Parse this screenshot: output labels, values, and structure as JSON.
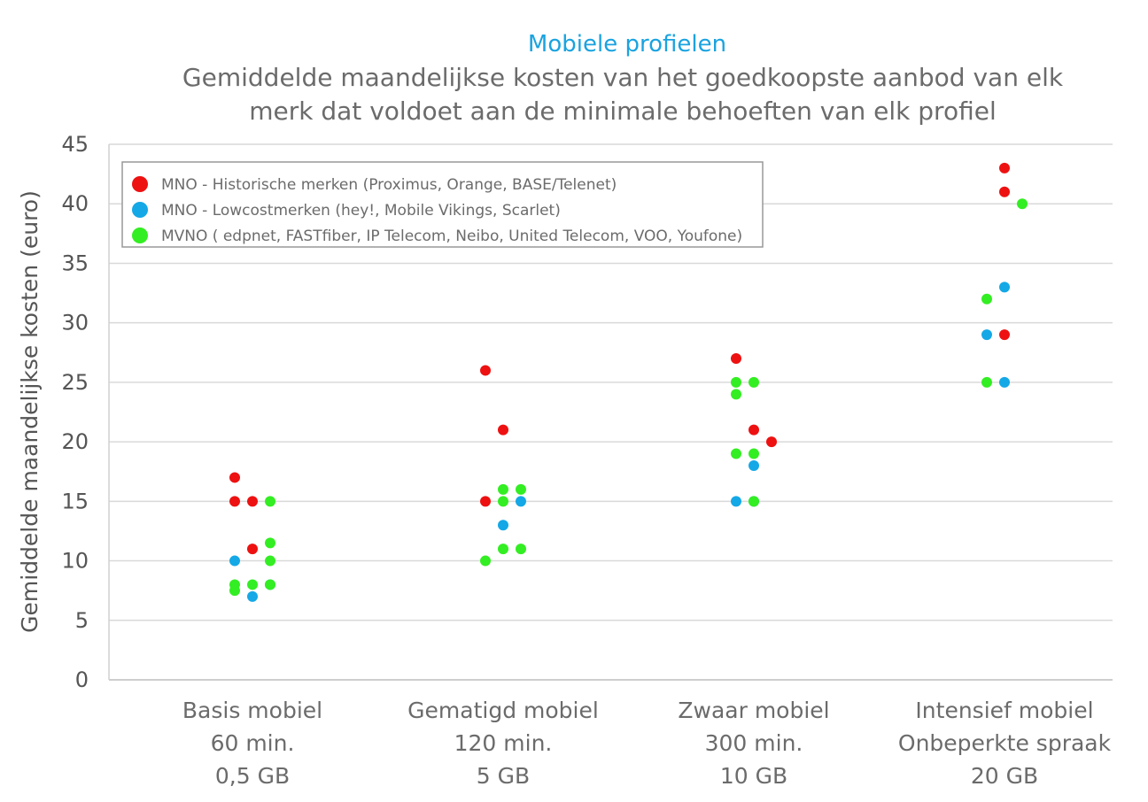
{
  "chart_data": {
    "type": "scatter",
    "title": "Mobiele profielen",
    "subtitle_lines": [
      "Gemiddelde maandelijkse kosten van het goedkoopste aanbod van elk",
      "merk dat voldoet aan de minimale behoeften van elk profiel"
    ],
    "ylabel": "Gemiddelde maandelijkse kosten (euro)",
    "ylim": [
      0,
      45
    ],
    "yticks": [
      0,
      5,
      10,
      15,
      20,
      25,
      30,
      35,
      40,
      45
    ],
    "grid": true,
    "legend_position": "top-left",
    "categories": [
      {
        "lines": [
          "Basis mobiel",
          "60 min.",
          "0,5 GB"
        ]
      },
      {
        "lines": [
          "Gematigd mobiel",
          "120 min.",
          "5 GB"
        ]
      },
      {
        "lines": [
          "Zwaar mobiel",
          "300 min.",
          "10 GB"
        ]
      },
      {
        "lines": [
          "Intensief mobiel",
          "Onbeperkte spraak",
          "20 GB"
        ]
      }
    ],
    "series": [
      {
        "name": "MNO - Historische merken (Proximus, Orange, BASE/Telenet)",
        "color": "#ee1111",
        "points": [
          {
            "category": 0,
            "slot": 0,
            "y": 17
          },
          {
            "category": 0,
            "slot": 0,
            "y": 15
          },
          {
            "category": 0,
            "slot": 1,
            "y": 15
          },
          {
            "category": 0,
            "slot": 1,
            "y": 11
          },
          {
            "category": 1,
            "slot": 0,
            "y": 26
          },
          {
            "category": 1,
            "slot": 1,
            "y": 21
          },
          {
            "category": 1,
            "slot": 0,
            "y": 15
          },
          {
            "category": 2,
            "slot": 0,
            "y": 27
          },
          {
            "category": 2,
            "slot": 1,
            "y": 21
          },
          {
            "category": 2,
            "slot": 2,
            "y": 20
          },
          {
            "category": 3,
            "slot": 1,
            "y": 43
          },
          {
            "category": 3,
            "slot": 1,
            "y": 41
          },
          {
            "category": 3,
            "slot": 1,
            "y": 29
          }
        ]
      },
      {
        "name": "MNO - Lowcostmerken (hey!, Mobile Vikings, Scarlet)",
        "color": "#14a8e6",
        "points": [
          {
            "category": 0,
            "slot": 0,
            "y": 10
          },
          {
            "category": 0,
            "slot": 1,
            "y": 7
          },
          {
            "category": 0,
            "slot": 2,
            "y": 8
          },
          {
            "category": 1,
            "slot": 1,
            "y": 13
          },
          {
            "category": 1,
            "slot": 2,
            "y": 15
          },
          {
            "category": 2,
            "slot": 1,
            "y": 18
          },
          {
            "category": 2,
            "slot": 0,
            "y": 15
          },
          {
            "category": 2,
            "slot": 1,
            "y": 15
          },
          {
            "category": 3,
            "slot": 1,
            "y": 33
          },
          {
            "category": 3,
            "slot": 0,
            "y": 29
          },
          {
            "category": 3,
            "slot": 1,
            "y": 25
          }
        ]
      },
      {
        "name": "MVNO ( edpnet,  FASTfiber, IP Telecom, Neibo, United Telecom, VOO, Youfone)",
        "color": "#33ee22",
        "points": [
          {
            "category": 0,
            "slot": 2,
            "y": 15
          },
          {
            "category": 0,
            "slot": 2,
            "y": 11.5
          },
          {
            "category": 0,
            "slot": 2,
            "y": 10
          },
          {
            "category": 0,
            "slot": 0,
            "y": 8
          },
          {
            "category": 0,
            "slot": 1,
            "y": 8
          },
          {
            "category": 0,
            "slot": 0,
            "y": 7.5
          },
          {
            "category": 0,
            "slot": 2,
            "y": 8
          },
          {
            "category": 1,
            "slot": 1,
            "y": 16
          },
          {
            "category": 1,
            "slot": 2,
            "y": 16
          },
          {
            "category": 1,
            "slot": 1,
            "y": 15
          },
          {
            "category": 1,
            "slot": 1,
            "y": 11
          },
          {
            "category": 1,
            "slot": 2,
            "y": 11
          },
          {
            "category": 1,
            "slot": 0,
            "y": 10
          },
          {
            "category": 2,
            "slot": 0,
            "y": 25
          },
          {
            "category": 2,
            "slot": 1,
            "y": 25
          },
          {
            "category": 2,
            "slot": 0,
            "y": 24
          },
          {
            "category": 2,
            "slot": 0,
            "y": 19
          },
          {
            "category": 2,
            "slot": 1,
            "y": 19
          },
          {
            "category": 2,
            "slot": 1,
            "y": 15
          },
          {
            "category": 3,
            "slot": 0,
            "y": 32
          },
          {
            "category": 3,
            "slot": 2,
            "y": 40
          },
          {
            "category": 3,
            "slot": 0,
            "y": 25
          }
        ]
      }
    ]
  }
}
